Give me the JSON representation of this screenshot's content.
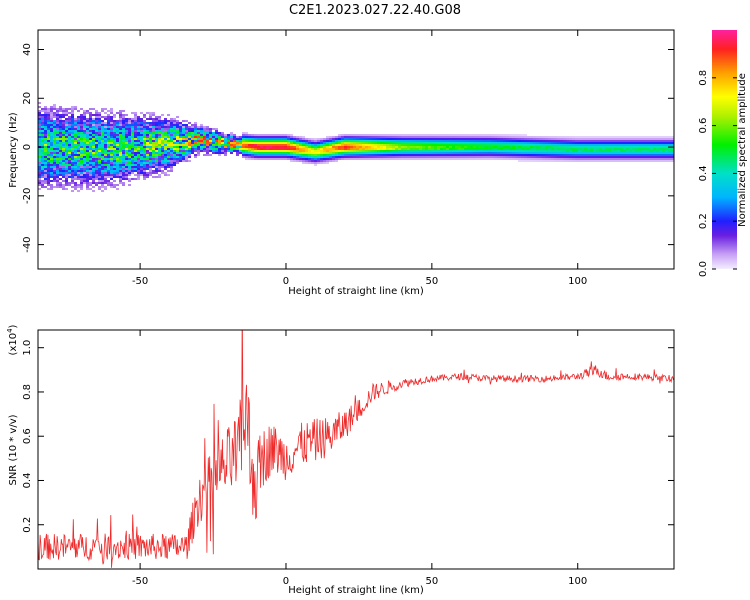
{
  "title": "C2E1.2023.027.22.40.G08",
  "chart_data": [
    {
      "type": "heatmap",
      "xlabel": "Height of straight line (km)",
      "ylabel": "Frequency (Hz)",
      "xlim": [
        -85,
        133
      ],
      "ylim": [
        -50,
        48
      ],
      "xticks": [
        -50,
        0,
        50,
        100
      ],
      "yticks": [
        -40,
        -20,
        0,
        20,
        40
      ],
      "colorbar": {
        "label": "Normalized spectral amplitude",
        "range": [
          0,
          1
        ],
        "ticks": [
          "0.0",
          "0.2",
          "0.4",
          "0.6",
          "0.8"
        ]
      },
      "band_profile": [
        {
          "x": -85,
          "center": 0,
          "halfwidth": 12,
          "amplitude": 0.35
        },
        {
          "x": -60,
          "center": -1,
          "halfwidth": 11,
          "amplitude": 0.4
        },
        {
          "x": -40,
          "center": 1,
          "halfwidth": 8,
          "amplitude": 0.6
        },
        {
          "x": -30,
          "center": 3,
          "halfwidth": 4,
          "amplitude": 0.85
        },
        {
          "x": -18,
          "center": 1,
          "halfwidth": 3,
          "amplitude": 0.8
        },
        {
          "x": -10,
          "center": 0,
          "halfwidth": 3,
          "amplitude": 0.95
        },
        {
          "x": 0,
          "center": 0,
          "halfwidth": 3,
          "amplitude": 0.95
        },
        {
          "x": 10,
          "center": -2,
          "halfwidth": 3,
          "amplitude": 0.7
        },
        {
          "x": 20,
          "center": 0,
          "halfwidth": 3,
          "amplitude": 0.9
        },
        {
          "x": 40,
          "center": 0,
          "halfwidth": 3,
          "amplitude": 0.6
        },
        {
          "x": 70,
          "center": 0,
          "halfwidth": 3,
          "amplitude": 0.5
        },
        {
          "x": 100,
          "center": -1,
          "halfwidth": 3,
          "amplitude": 0.45
        },
        {
          "x": 133,
          "center": -1,
          "halfwidth": 3,
          "amplitude": 0.45
        }
      ]
    },
    {
      "type": "line",
      "xlabel": "Height of straight line (km)",
      "ylabel": "SNR (10 * v/v)",
      "y_multiplier": "(x10",
      "y_multiplier_exp": "4",
      "y_multiplier_close": ")",
      "xlim": [
        -85,
        133
      ],
      "ylim": [
        0,
        1.08
      ],
      "xticks": [
        -50,
        0,
        50,
        100
      ],
      "yticks": [
        0.2,
        0.4,
        0.6,
        0.8,
        1.0
      ],
      "ytick_labels": [
        "0.2",
        "0.4",
        "0.6",
        "0.8",
        "1.0"
      ],
      "color": "#ee2a2a",
      "series": [
        {
          "x": [
            -85,
            -70,
            -50,
            -40,
            -34,
            -30,
            -25,
            -20,
            -16,
            -14,
            -12,
            -10,
            -8,
            -5,
            0,
            5,
            10,
            15,
            20,
            25,
            30,
            40,
            50,
            60,
            70,
            80,
            90,
            100,
            107,
            110,
            120,
            133
          ],
          "y": [
            0.1,
            0.1,
            0.1,
            0.1,
            0.1,
            0.32,
            0.4,
            0.48,
            0.52,
            0.75,
            0.48,
            0.38,
            0.5,
            0.55,
            0.5,
            0.56,
            0.58,
            0.6,
            0.65,
            0.72,
            0.8,
            0.84,
            0.86,
            0.87,
            0.86,
            0.86,
            0.86,
            0.87,
            0.9,
            0.87,
            0.87,
            0.86
          ],
          "noise": [
            0.06,
            0.06,
            0.06,
            0.06,
            0.06,
            0.12,
            0.14,
            0.16,
            0.2,
            0.3,
            0.22,
            0.2,
            0.14,
            0.12,
            0.1,
            0.1,
            0.1,
            0.09,
            0.07,
            0.05,
            0.04,
            0.02,
            0.015,
            0.015,
            0.015,
            0.015,
            0.015,
            0.015,
            0.03,
            0.02,
            0.015,
            0.015
          ]
        }
      ]
    }
  ]
}
